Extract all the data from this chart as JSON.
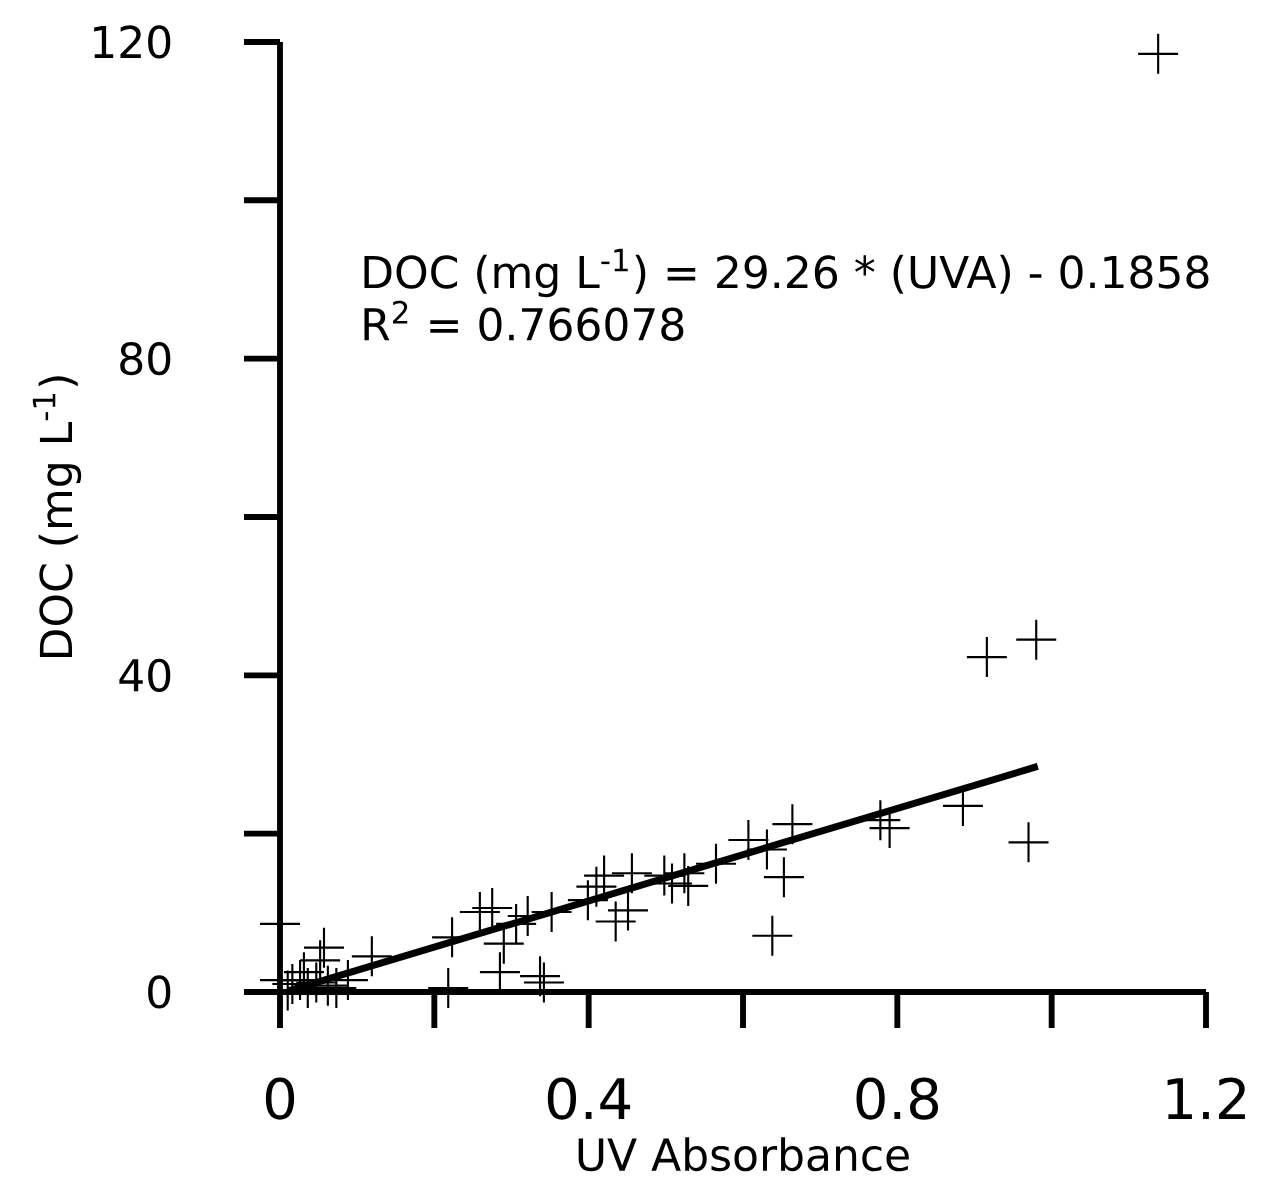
{
  "chart_data": {
    "type": "scatter",
    "xlabel": "UV Absorbance",
    "ylabel": "DOC (mg L$^{-1}$)",
    "annotations": [
      "DOC (mg L$^{-1}$) = 29.26 * (UVA) - 0.1858",
      "R$^{2}$ = 0.766078"
    ],
    "xlim": [
      0,
      1.2
    ],
    "ylim": [
      0,
      120
    ],
    "xticks": [
      0,
      0.4,
      0.8,
      1.2
    ],
    "yticks": [
      0,
      40,
      80,
      120
    ],
    "series": [
      {
        "color": "#000000",
        "marker": "cross",
        "x": [
          1.138,
          0.916,
          0.98,
          0.97,
          0.885,
          0.778,
          0.79,
          0.664,
          0.607,
          0.631,
          0.653,
          0.638,
          0.565,
          0.524,
          0.508,
          0.529,
          0.498,
          0.456,
          0.42,
          0.41,
          0.399,
          0.451,
          0.435,
          0.352,
          0.321,
          0.306,
          0.275,
          0.259,
          0.29,
          0.285,
          0.337,
          0.342,
          0.223,
          0.218,
          0.119,
          0.088,
          0.057,
          0.052,
          0.0,
          0.0,
          0.016,
          0.026,
          0.036,
          0.031,
          0.047,
          0.062,
          0.01,
          0.073
        ],
        "values": [
          118.5,
          42.3,
          44.5,
          18.9,
          23.5,
          21.7,
          20.7,
          21.2,
          19.2,
          18.0,
          14.5,
          7.1,
          16.2,
          15.0,
          13.7,
          13.4,
          14.7,
          15.0,
          14.7,
          13.3,
          11.6,
          10.3,
          8.9,
          10.1,
          9.6,
          8.6,
          10.6,
          10.1,
          6.1,
          2.5,
          2.0,
          1.2,
          6.9,
          0.5,
          4.5,
          1.5,
          5.6,
          4.0,
          8.6,
          1.5,
          1.0,
          1.5,
          0.5,
          2.5,
          1.2,
          0.8,
          0.2,
          0.5
        ]
      },
      {
        "type": "line",
        "color": "#000000",
        "marker": "none",
        "line_style": "solid",
        "x": [
          0.013,
          0.982
        ],
        "values": [
          0.2,
          28.5
        ]
      }
    ]
  }
}
